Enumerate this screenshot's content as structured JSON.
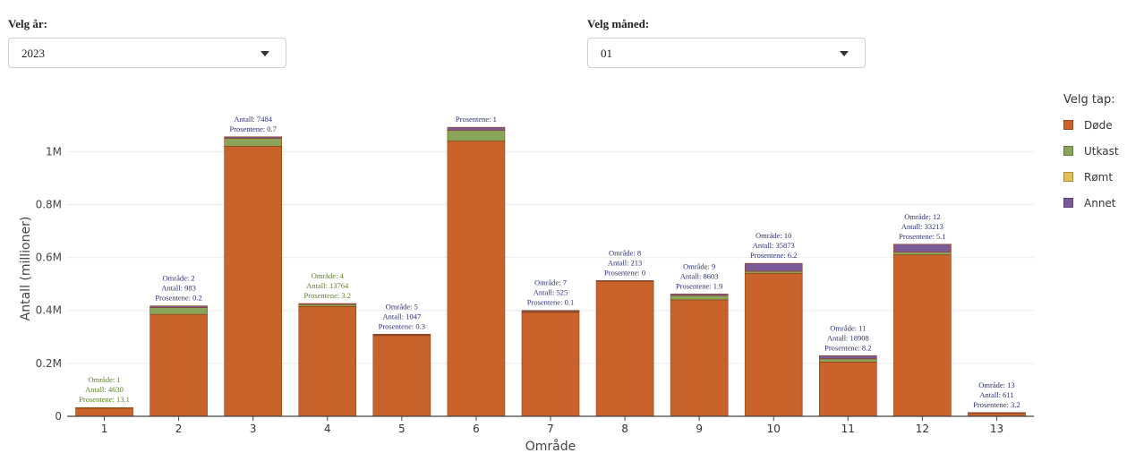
{
  "controls": {
    "year": {
      "label": "Velg år:",
      "value": "2023"
    },
    "month": {
      "label": "Velg måned:",
      "value": "01"
    }
  },
  "legend": {
    "title": "Velg tap:",
    "items": [
      {
        "label": "Døde",
        "color": "#c9622b"
      },
      {
        "label": "Utkast",
        "color": "#8aa45a"
      },
      {
        "label": "Rømt",
        "color": "#e0c05a"
      },
      {
        "label": "Annet",
        "color": "#7b5a99"
      }
    ]
  },
  "chart_data": {
    "type": "bar",
    "stacked": true,
    "xlabel": "Område",
    "ylabel": "Antall (millioner)",
    "ylim": [
      0,
      1150000
    ],
    "yticks": [
      {
        "value": 0,
        "label": "0"
      },
      {
        "value": 200000,
        "label": "0.2M"
      },
      {
        "value": 400000,
        "label": "0.4M"
      },
      {
        "value": 600000,
        "label": "0.6M"
      },
      {
        "value": 800000,
        "label": "0.8M"
      },
      {
        "value": 1000000,
        "label": "1M"
      }
    ],
    "grid": true,
    "categories": [
      "1",
      "2",
      "3",
      "4",
      "5",
      "6",
      "7",
      "8",
      "9",
      "10",
      "11",
      "12",
      "13"
    ],
    "series": [
      {
        "name": "Døde",
        "color": "#c9622b",
        "values": [
          30000,
          385000,
          1020000,
          415000,
          305000,
          1040000,
          393000,
          510000,
          440000,
          540000,
          205000,
          610000,
          12000
        ]
      },
      {
        "name": "Utkast",
        "color": "#8aa45a",
        "values": [
          3000,
          26000,
          30000,
          8000,
          3000,
          40000,
          3000,
          0,
          16000,
          8000,
          12000,
          10000,
          1000
        ]
      },
      {
        "name": "Rømt",
        "color": "#e0c05a",
        "values": [
          0,
          0,
          0,
          0,
          0,
          0,
          0,
          0,
          0,
          0,
          0,
          0,
          0
        ]
      },
      {
        "name": "Annet",
        "color": "#7b5a99",
        "values": [
          0,
          6000,
          6000,
          3000,
          2000,
          12000,
          4000,
          3000,
          6000,
          30000,
          12000,
          30000,
          1000
        ]
      }
    ],
    "annotations": [
      {
        "lines": [
          "Område: 1",
          "Antall: 4630",
          "Prosentene: 13.1"
        ],
        "color": "#5e7d2a"
      },
      {
        "lines": [
          "Område: 2",
          "Antall: 983",
          "Prosentene: 0.2"
        ],
        "color": "#2b2f6b"
      },
      {
        "lines": [
          "Antall: 7484",
          "Prosentene: 0.7"
        ],
        "color": "#2b2f6b"
      },
      {
        "lines": [
          "Område: 4",
          "Antall: 13764",
          "Prosentene: 3.2"
        ],
        "color": "#5e7d2a"
      },
      {
        "lines": [
          "Område: 5",
          "Antall: 1047",
          "Prosentene: 0.3"
        ],
        "color": "#2b2f6b"
      },
      {
        "lines": [
          "Prosentene: 1"
        ],
        "color": "#2b2f6b"
      },
      {
        "lines": [
          "Område: 7",
          "Antall: 525",
          "Prosentene: 0.1"
        ],
        "color": "#2b2f6b"
      },
      {
        "lines": [
          "Område: 8",
          "Antall: 213",
          "Prosentene: 0"
        ],
        "color": "#2b2f6b"
      },
      {
        "lines": [
          "Område: 9",
          "Antall: 8603",
          "Prosentene: 1.9"
        ],
        "color": "#2b2f6b"
      },
      {
        "lines": [
          "Område: 10",
          "Antall: 35873",
          "Prosentene: 6.2"
        ],
        "color": "#2b2f6b"
      },
      {
        "lines": [
          "Område: 11",
          "Antall: 18908",
          "Prosentene: 8.2"
        ],
        "color": "#2b2f6b"
      },
      {
        "lines": [
          "Område: 12",
          "Antall: 33213",
          "Prosentene: 5.1"
        ],
        "color": "#2b2f6b"
      },
      {
        "lines": [
          "Område: 13",
          "Antall: 611",
          "Prosentene: 3.2"
        ],
        "color": "#2b2f6b"
      }
    ]
  }
}
